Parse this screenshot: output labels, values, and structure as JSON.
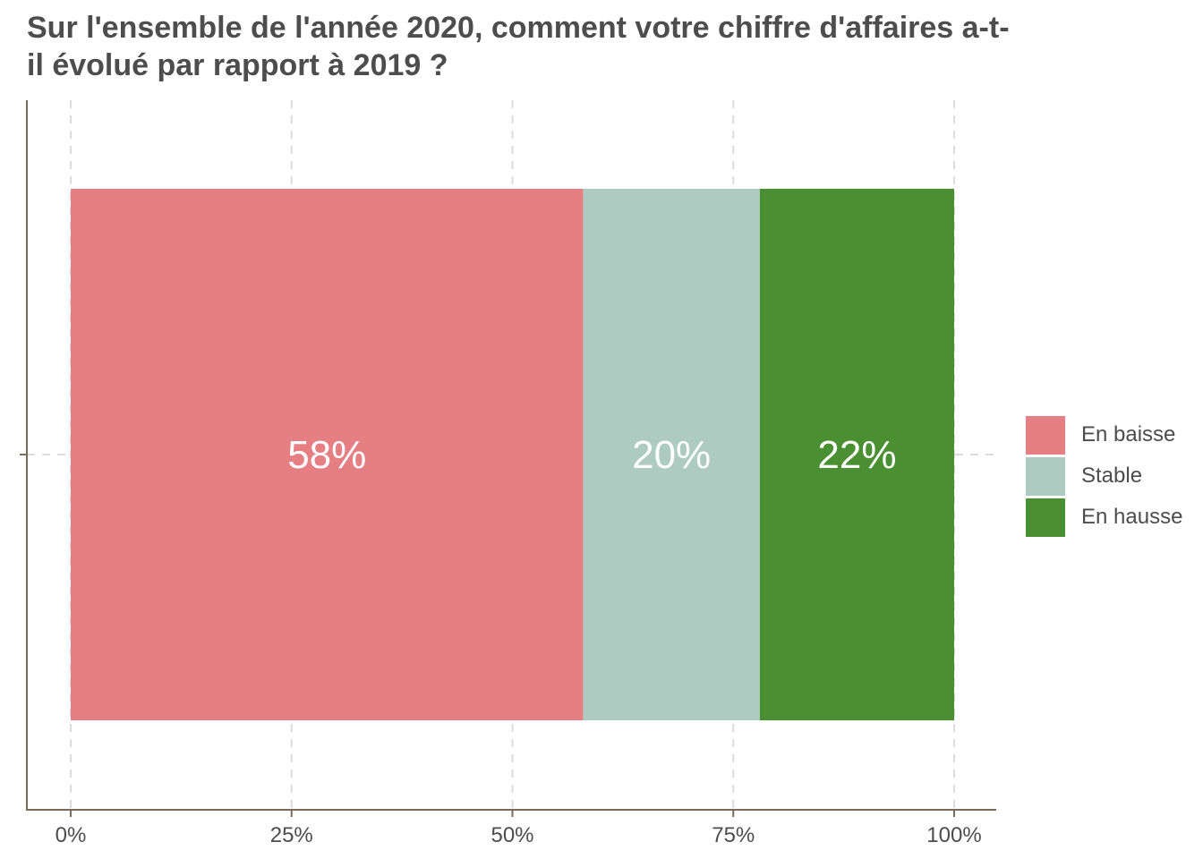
{
  "chart_data": {
    "type": "bar",
    "orientation": "horizontal",
    "stacked": true,
    "title_lines": [
      "Sur l'ensemble de l'année 2020, comment votre chiffre d'affaires a-t-",
      "il évolué par rapport à 2019 ?"
    ],
    "xlabel": "",
    "ylabel": "",
    "xlim": [
      0,
      1
    ],
    "x_ticks": [
      0,
      0.25,
      0.5,
      0.75,
      1
    ],
    "x_tick_labels": [
      "0%",
      "25%",
      "50%",
      "75%",
      "100%"
    ],
    "grid": true,
    "legend_position": "right",
    "series": [
      {
        "name": "En baisse",
        "value": 0.58,
        "label": "58%",
        "color": "#e57f84"
      },
      {
        "name": "Stable",
        "value": 0.2,
        "label": "20%",
        "color": "#aecbc1"
      },
      {
        "name": "En hausse",
        "value": 0.22,
        "label": "22%",
        "color": "#4a9032"
      }
    ]
  }
}
